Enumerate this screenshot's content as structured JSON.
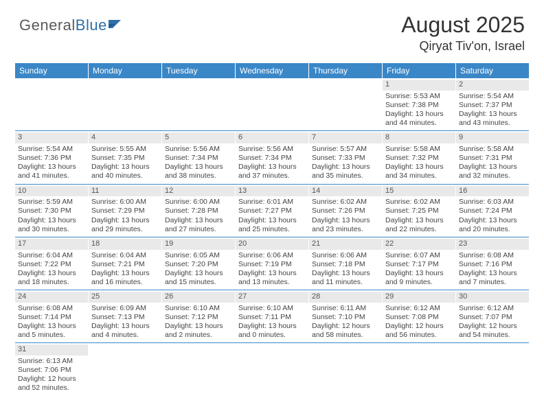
{
  "logo": {
    "text1": "General",
    "text2": "Blue"
  },
  "title": "August 2025",
  "location": "Qiryat Tiv'on, Israel",
  "colors": {
    "header_bg": "#3a87c7",
    "header_text": "#ffffff",
    "daynum_bg": "#e9e9e9",
    "row_border": "#3a87c7",
    "logo_gray": "#5a5a5a",
    "logo_blue": "#2f6fa8"
  },
  "dayNames": [
    "Sunday",
    "Monday",
    "Tuesday",
    "Wednesday",
    "Thursday",
    "Friday",
    "Saturday"
  ],
  "weeks": [
    [
      {
        "n": "",
        "sr": "",
        "ss": "",
        "dl": ""
      },
      {
        "n": "",
        "sr": "",
        "ss": "",
        "dl": ""
      },
      {
        "n": "",
        "sr": "",
        "ss": "",
        "dl": ""
      },
      {
        "n": "",
        "sr": "",
        "ss": "",
        "dl": ""
      },
      {
        "n": "",
        "sr": "",
        "ss": "",
        "dl": ""
      },
      {
        "n": "1",
        "sr": "Sunrise: 5:53 AM",
        "ss": "Sunset: 7:38 PM",
        "dl": "Daylight: 13 hours and 44 minutes."
      },
      {
        "n": "2",
        "sr": "Sunrise: 5:54 AM",
        "ss": "Sunset: 7:37 PM",
        "dl": "Daylight: 13 hours and 43 minutes."
      }
    ],
    [
      {
        "n": "3",
        "sr": "Sunrise: 5:54 AM",
        "ss": "Sunset: 7:36 PM",
        "dl": "Daylight: 13 hours and 41 minutes."
      },
      {
        "n": "4",
        "sr": "Sunrise: 5:55 AM",
        "ss": "Sunset: 7:35 PM",
        "dl": "Daylight: 13 hours and 40 minutes."
      },
      {
        "n": "5",
        "sr": "Sunrise: 5:56 AM",
        "ss": "Sunset: 7:34 PM",
        "dl": "Daylight: 13 hours and 38 minutes."
      },
      {
        "n": "6",
        "sr": "Sunrise: 5:56 AM",
        "ss": "Sunset: 7:34 PM",
        "dl": "Daylight: 13 hours and 37 minutes."
      },
      {
        "n": "7",
        "sr": "Sunrise: 5:57 AM",
        "ss": "Sunset: 7:33 PM",
        "dl": "Daylight: 13 hours and 35 minutes."
      },
      {
        "n": "8",
        "sr": "Sunrise: 5:58 AM",
        "ss": "Sunset: 7:32 PM",
        "dl": "Daylight: 13 hours and 34 minutes."
      },
      {
        "n": "9",
        "sr": "Sunrise: 5:58 AM",
        "ss": "Sunset: 7:31 PM",
        "dl": "Daylight: 13 hours and 32 minutes."
      }
    ],
    [
      {
        "n": "10",
        "sr": "Sunrise: 5:59 AM",
        "ss": "Sunset: 7:30 PM",
        "dl": "Daylight: 13 hours and 30 minutes."
      },
      {
        "n": "11",
        "sr": "Sunrise: 6:00 AM",
        "ss": "Sunset: 7:29 PM",
        "dl": "Daylight: 13 hours and 29 minutes."
      },
      {
        "n": "12",
        "sr": "Sunrise: 6:00 AM",
        "ss": "Sunset: 7:28 PM",
        "dl": "Daylight: 13 hours and 27 minutes."
      },
      {
        "n": "13",
        "sr": "Sunrise: 6:01 AM",
        "ss": "Sunset: 7:27 PM",
        "dl": "Daylight: 13 hours and 25 minutes."
      },
      {
        "n": "14",
        "sr": "Sunrise: 6:02 AM",
        "ss": "Sunset: 7:26 PM",
        "dl": "Daylight: 13 hours and 23 minutes."
      },
      {
        "n": "15",
        "sr": "Sunrise: 6:02 AM",
        "ss": "Sunset: 7:25 PM",
        "dl": "Daylight: 13 hours and 22 minutes."
      },
      {
        "n": "16",
        "sr": "Sunrise: 6:03 AM",
        "ss": "Sunset: 7:24 PM",
        "dl": "Daylight: 13 hours and 20 minutes."
      }
    ],
    [
      {
        "n": "17",
        "sr": "Sunrise: 6:04 AM",
        "ss": "Sunset: 7:22 PM",
        "dl": "Daylight: 13 hours and 18 minutes."
      },
      {
        "n": "18",
        "sr": "Sunrise: 6:04 AM",
        "ss": "Sunset: 7:21 PM",
        "dl": "Daylight: 13 hours and 16 minutes."
      },
      {
        "n": "19",
        "sr": "Sunrise: 6:05 AM",
        "ss": "Sunset: 7:20 PM",
        "dl": "Daylight: 13 hours and 15 minutes."
      },
      {
        "n": "20",
        "sr": "Sunrise: 6:06 AM",
        "ss": "Sunset: 7:19 PM",
        "dl": "Daylight: 13 hours and 13 minutes."
      },
      {
        "n": "21",
        "sr": "Sunrise: 6:06 AM",
        "ss": "Sunset: 7:18 PM",
        "dl": "Daylight: 13 hours and 11 minutes."
      },
      {
        "n": "22",
        "sr": "Sunrise: 6:07 AM",
        "ss": "Sunset: 7:17 PM",
        "dl": "Daylight: 13 hours and 9 minutes."
      },
      {
        "n": "23",
        "sr": "Sunrise: 6:08 AM",
        "ss": "Sunset: 7:16 PM",
        "dl": "Daylight: 13 hours and 7 minutes."
      }
    ],
    [
      {
        "n": "24",
        "sr": "Sunrise: 6:08 AM",
        "ss": "Sunset: 7:14 PM",
        "dl": "Daylight: 13 hours and 5 minutes."
      },
      {
        "n": "25",
        "sr": "Sunrise: 6:09 AM",
        "ss": "Sunset: 7:13 PM",
        "dl": "Daylight: 13 hours and 4 minutes."
      },
      {
        "n": "26",
        "sr": "Sunrise: 6:10 AM",
        "ss": "Sunset: 7:12 PM",
        "dl": "Daylight: 13 hours and 2 minutes."
      },
      {
        "n": "27",
        "sr": "Sunrise: 6:10 AM",
        "ss": "Sunset: 7:11 PM",
        "dl": "Daylight: 13 hours and 0 minutes."
      },
      {
        "n": "28",
        "sr": "Sunrise: 6:11 AM",
        "ss": "Sunset: 7:10 PM",
        "dl": "Daylight: 12 hours and 58 minutes."
      },
      {
        "n": "29",
        "sr": "Sunrise: 6:12 AM",
        "ss": "Sunset: 7:08 PM",
        "dl": "Daylight: 12 hours and 56 minutes."
      },
      {
        "n": "30",
        "sr": "Sunrise: 6:12 AM",
        "ss": "Sunset: 7:07 PM",
        "dl": "Daylight: 12 hours and 54 minutes."
      }
    ],
    [
      {
        "n": "31",
        "sr": "Sunrise: 6:13 AM",
        "ss": "Sunset: 7:06 PM",
        "dl": "Daylight: 12 hours and 52 minutes."
      },
      {
        "n": "",
        "sr": "",
        "ss": "",
        "dl": ""
      },
      {
        "n": "",
        "sr": "",
        "ss": "",
        "dl": ""
      },
      {
        "n": "",
        "sr": "",
        "ss": "",
        "dl": ""
      },
      {
        "n": "",
        "sr": "",
        "ss": "",
        "dl": ""
      },
      {
        "n": "",
        "sr": "",
        "ss": "",
        "dl": ""
      },
      {
        "n": "",
        "sr": "",
        "ss": "",
        "dl": ""
      }
    ]
  ]
}
